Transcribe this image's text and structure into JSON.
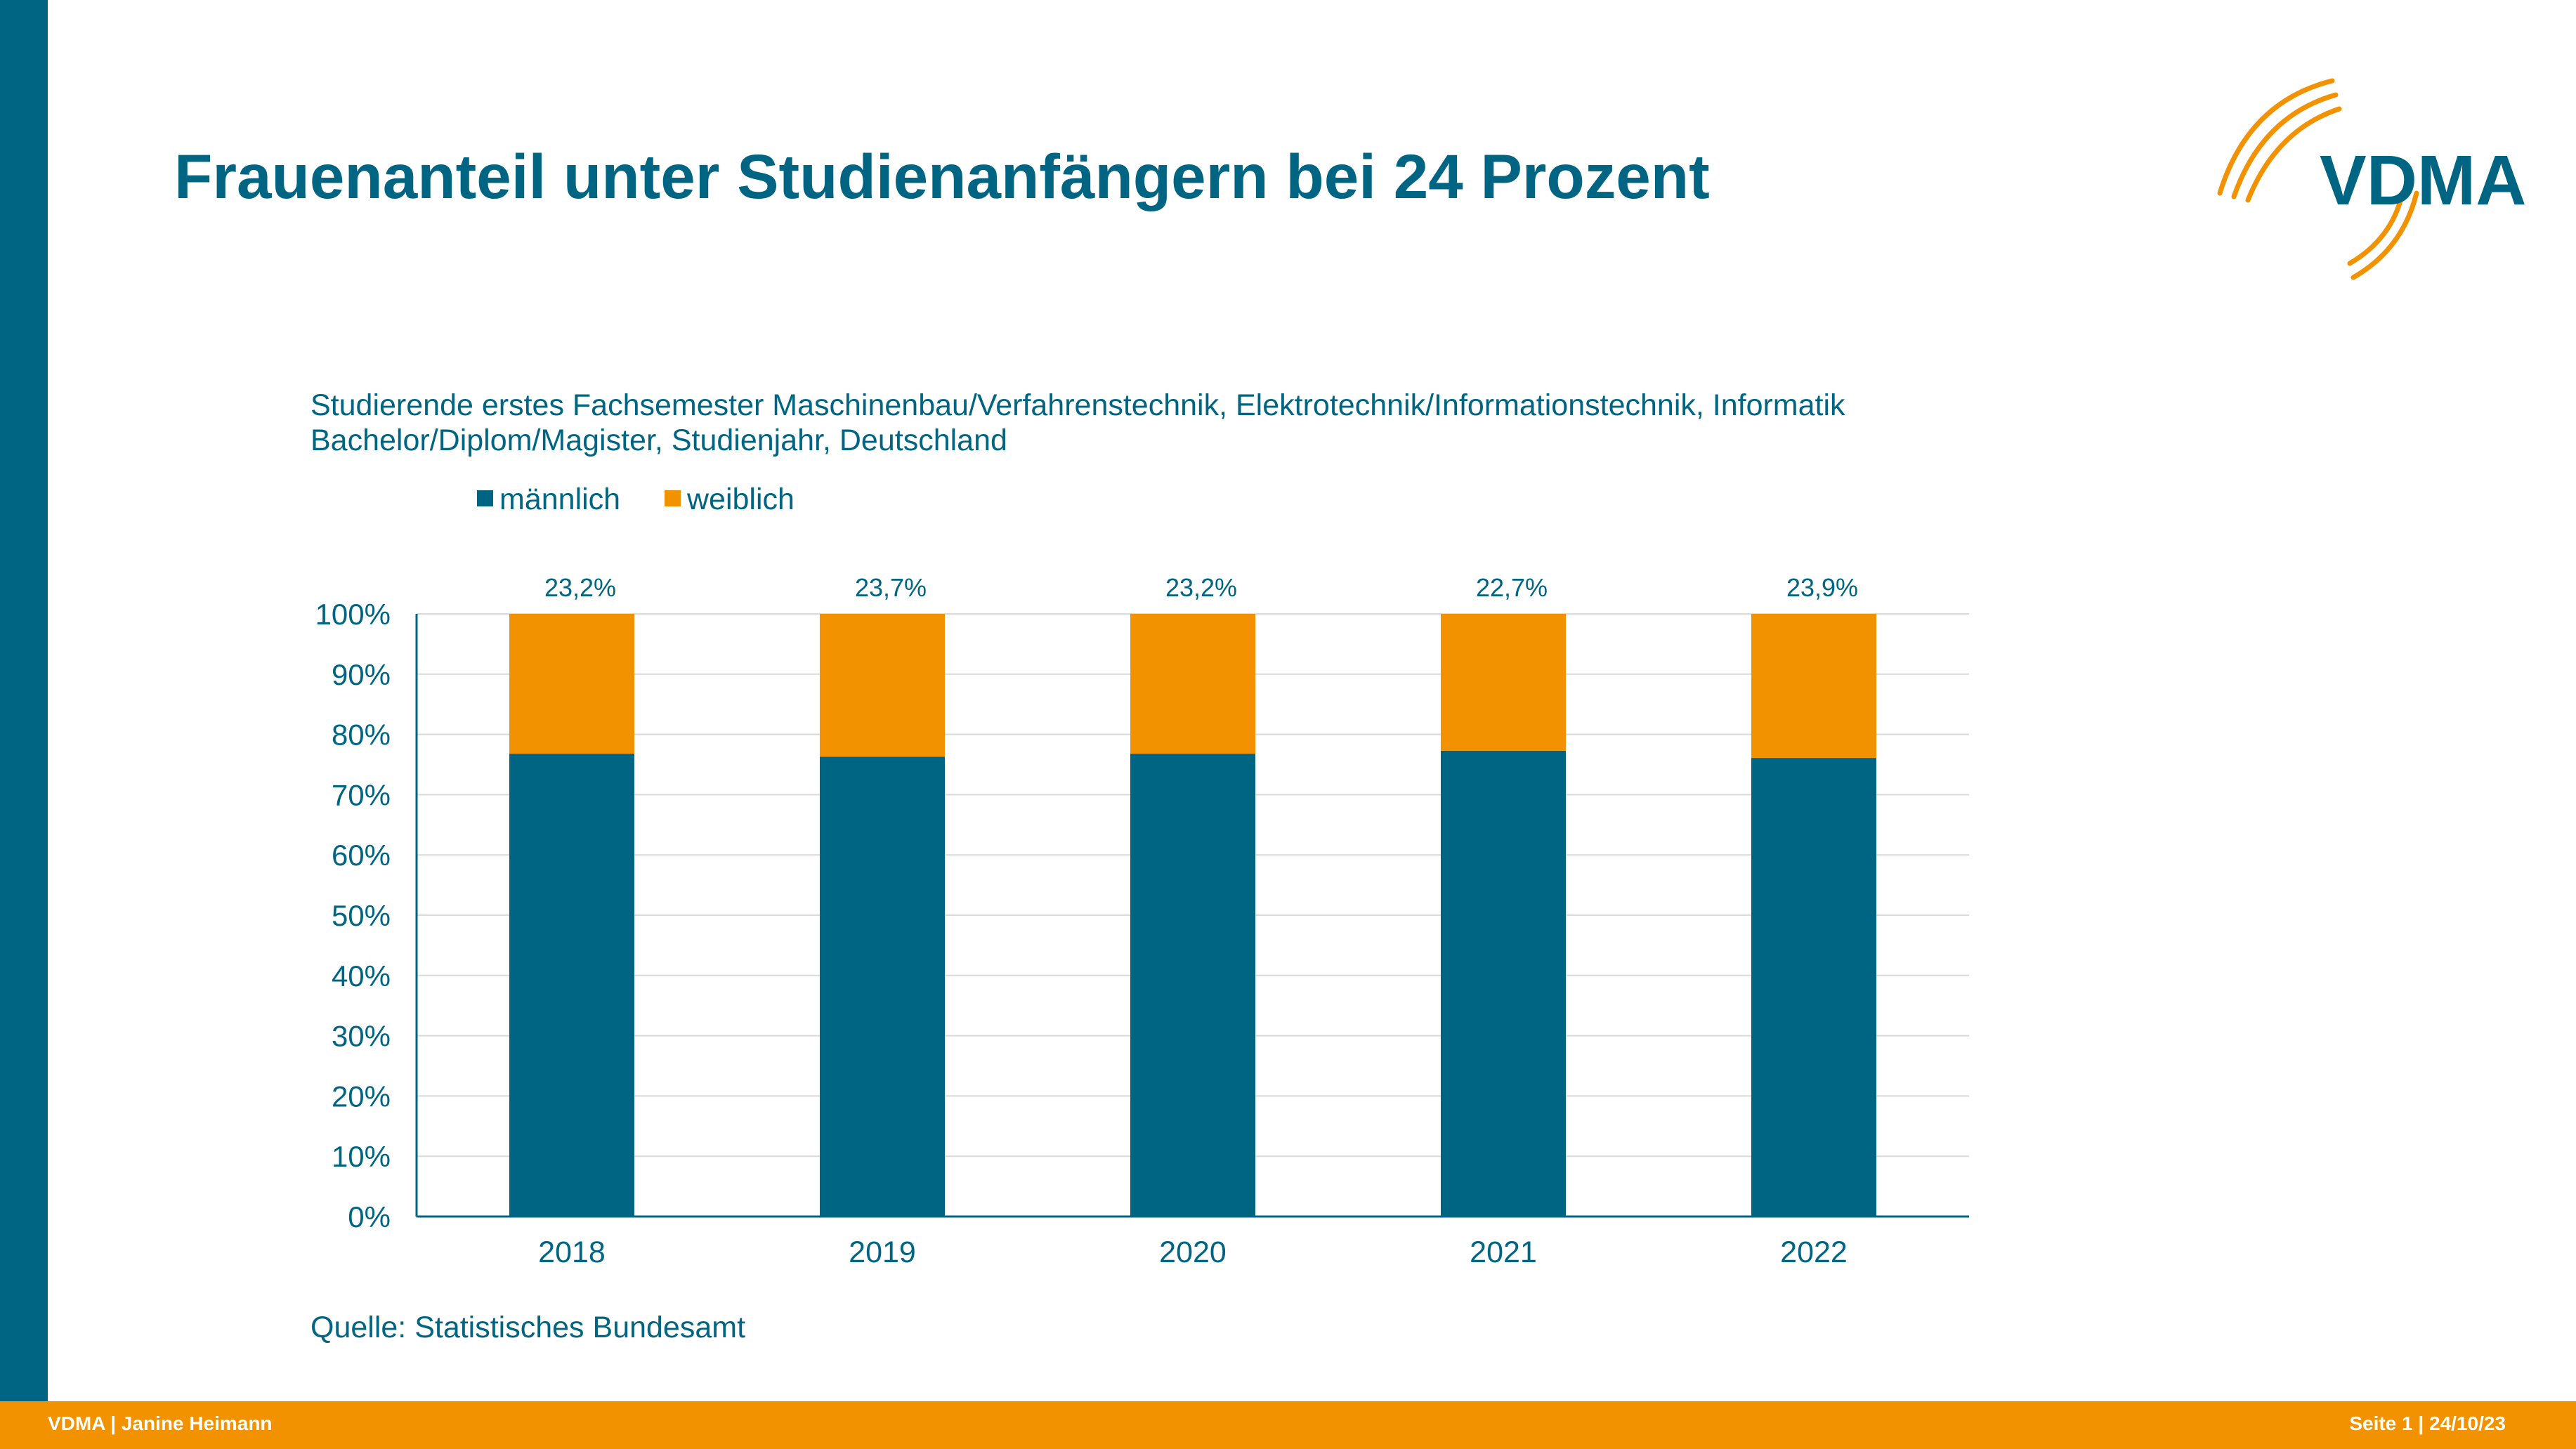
{
  "slide": {
    "title": "Frauenanteil unter Studienanfängern bei 24 Prozent",
    "subtitle_line1": "Studierende erstes Fachsemester Maschinenbau/Verfahrenstechnik, Elektrotechnik/Informationstechnik, Informatik",
    "subtitle_line2": "Bachelor/Diplom/Magister, Studienjahr, Deutschland",
    "source": "Quelle: Statistisches Bundesamt",
    "logo_text": "VDMA",
    "footer_left": "VDMA | Janine Heimann",
    "footer_right": "Seite 1 | 24/10/23"
  },
  "colors": {
    "primary": "#006582",
    "accent": "#f39200",
    "grid": "#d9d9d9",
    "background": "#ffffff"
  },
  "chart_data": {
    "type": "bar",
    "stacked": true,
    "percent": true,
    "categories": [
      "2018",
      "2019",
      "2020",
      "2021",
      "2022"
    ],
    "series": [
      {
        "name": "männlich",
        "values": [
          76.8,
          76.3,
          76.8,
          77.3,
          76.1
        ]
      },
      {
        "name": "weiblich",
        "values": [
          23.2,
          23.7,
          23.2,
          22.7,
          23.9
        ]
      }
    ],
    "data_labels": [
      "23,2%",
      "23,7%",
      "23,2%",
      "22,7%",
      "23,9%"
    ],
    "y_ticks": [
      0,
      10,
      20,
      30,
      40,
      50,
      60,
      70,
      80,
      90,
      100
    ],
    "y_tick_labels": [
      "0%",
      "10%",
      "20%",
      "30%",
      "40%",
      "50%",
      "60%",
      "70%",
      "80%",
      "90%",
      "100%"
    ],
    "ylim": [
      0,
      100
    ],
    "grid": true,
    "legend_position": "top-left",
    "title": "",
    "xlabel": "",
    "ylabel": ""
  }
}
